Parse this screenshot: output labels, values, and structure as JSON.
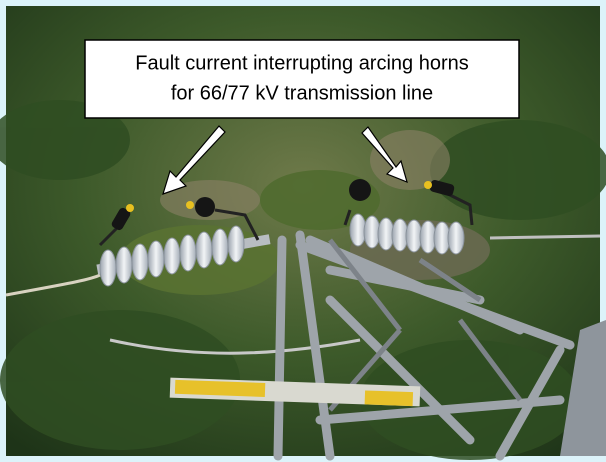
{
  "caption": {
    "lines": [
      "Fault current interrupting arcing horns",
      "for 66/77 kV transmission line"
    ]
  }
}
